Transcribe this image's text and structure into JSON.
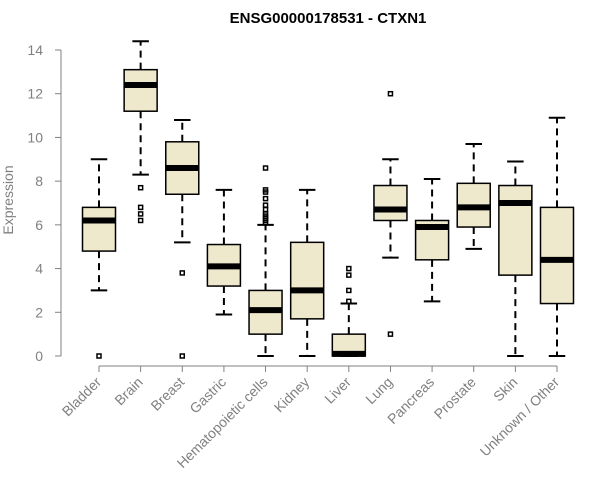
{
  "chart_data": {
    "type": "boxplot",
    "title": "ENSG00000178531 - CTXN1",
    "xlabel": "",
    "ylabel": "Expression",
    "ylim": [
      0,
      14
    ],
    "yticks": [
      0,
      2,
      4,
      6,
      8,
      10,
      12,
      14
    ],
    "grid": false,
    "box_color": "#eee8cd",
    "outline_color": "#000000",
    "axis_color": "#808080",
    "categories": [
      "Bladder",
      "Brain",
      "Breast",
      "Gastric",
      "Hematopoietic cells",
      "Kidney",
      "Liver",
      "Lung",
      "Pancreas",
      "Prostate",
      "Skin",
      "Unknown / Other"
    ],
    "boxes": [
      {
        "category": "Bladder",
        "whisker_low": 3.0,
        "q1": 4.8,
        "median": 6.2,
        "q3": 6.8,
        "whisker_high": 9.0,
        "outliers": [
          0.0
        ]
      },
      {
        "category": "Brain",
        "whisker_low": 8.3,
        "q1": 11.2,
        "median": 12.4,
        "q3": 13.1,
        "whisker_high": 14.4,
        "outliers": [
          7.7,
          6.8,
          6.5,
          6.2
        ]
      },
      {
        "category": "Breast",
        "whisker_low": 5.2,
        "q1": 7.4,
        "median": 8.6,
        "q3": 9.8,
        "whisker_high": 10.8,
        "outliers": [
          3.8,
          0.0
        ]
      },
      {
        "category": "Gastric",
        "whisker_low": 1.9,
        "q1": 3.2,
        "median": 4.1,
        "q3": 5.1,
        "whisker_high": 7.6,
        "outliers": []
      },
      {
        "category": "Hematopoietic cells",
        "whisker_low": 0.0,
        "q1": 1.0,
        "median": 2.1,
        "q3": 3.0,
        "whisker_high": 6.0,
        "outliers": [
          8.6,
          7.6,
          7.5,
          7.2,
          6.9,
          6.7,
          6.5,
          6.4,
          6.3,
          6.2,
          6.1
        ]
      },
      {
        "category": "Kidney",
        "whisker_low": 0.0,
        "q1": 1.7,
        "median": 3.0,
        "q3": 5.2,
        "whisker_high": 7.6,
        "outliers": []
      },
      {
        "category": "Liver",
        "whisker_low": 0.0,
        "q1": 0.0,
        "median": 0.1,
        "q3": 1.0,
        "whisker_high": 2.4,
        "outliers": [
          4.0,
          3.7,
          3.0,
          2.5
        ]
      },
      {
        "category": "Lung",
        "whisker_low": 4.5,
        "q1": 6.2,
        "median": 6.7,
        "q3": 7.8,
        "whisker_high": 9.0,
        "outliers": [
          12.0,
          1.0
        ]
      },
      {
        "category": "Pancreas",
        "whisker_low": 2.5,
        "q1": 4.4,
        "median": 5.9,
        "q3": 6.2,
        "whisker_high": 8.1,
        "outliers": []
      },
      {
        "category": "Prostate",
        "whisker_low": 4.9,
        "q1": 5.9,
        "median": 6.8,
        "q3": 7.9,
        "whisker_high": 9.7,
        "outliers": []
      },
      {
        "category": "Skin",
        "whisker_low": 0.0,
        "q1": 3.7,
        "median": 7.0,
        "q3": 7.8,
        "whisker_high": 8.9,
        "outliers": []
      },
      {
        "category": "Unknown / Other",
        "whisker_low": 0.0,
        "q1": 2.4,
        "median": 4.4,
        "q3": 6.8,
        "whisker_high": 10.9,
        "outliers": []
      }
    ]
  }
}
